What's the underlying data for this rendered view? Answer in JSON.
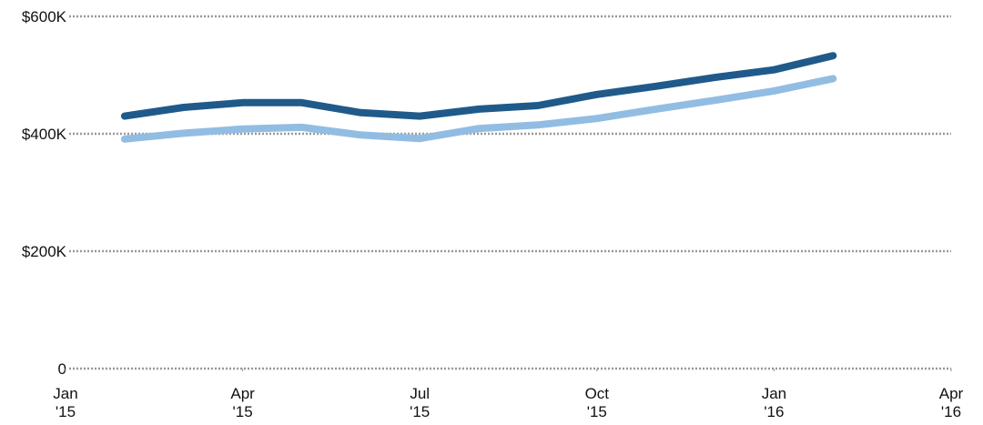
{
  "chart_data": {
    "type": "line",
    "x": [
      "2015-02",
      "2015-03",
      "2015-04",
      "2015-05",
      "2015-06",
      "2015-07",
      "2015-08",
      "2015-09",
      "2015-10",
      "2015-11",
      "2015-12",
      "2016-01",
      "2016-02"
    ],
    "series": [
      {
        "color": "#1f5a8b",
        "values": [
          430000,
          445000,
          453000,
          453000,
          436000,
          430000,
          442000,
          448000,
          467000,
          481000,
          496000,
          509000,
          533000
        ]
      },
      {
        "color": "#92bde3",
        "values": [
          391000,
          401000,
          408000,
          411000,
          398000,
          392000,
          409000,
          415000,
          426000,
          442000,
          457000,
          473000,
          494000
        ]
      }
    ],
    "xlim": [
      "2015-01",
      "2016-04"
    ],
    "xticks": [
      {
        "value": "2015-01",
        "label": "Jan\n'15"
      },
      {
        "value": "2015-04",
        "label": "Apr\n'15"
      },
      {
        "value": "2015-07",
        "label": "Jul\n'15"
      },
      {
        "value": "2015-10",
        "label": "Oct\n'15"
      },
      {
        "value": "2016-01",
        "label": "Jan\n'16"
      },
      {
        "value": "2016-04",
        "label": "Apr\n'16"
      }
    ],
    "ylim": [
      0,
      600000
    ],
    "yticks": [
      0,
      {
        "value": 200000,
        "label": "$200K"
      },
      {
        "value": 400000,
        "label": "$400K"
      },
      {
        "value": 600000,
        "label": "$600K"
      }
    ],
    "grid": true
  }
}
